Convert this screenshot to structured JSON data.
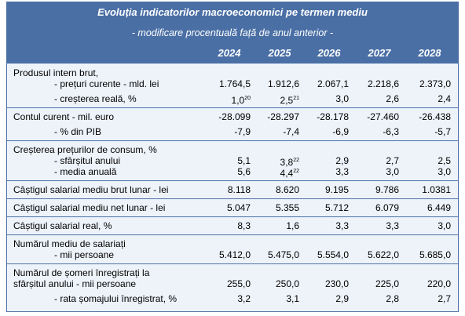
{
  "header": {
    "title": "Evoluția indicatorilor macroeconomici pe termen mediu",
    "subtitle": "- modificare procentuală față de anul anterior -",
    "years": [
      "2024",
      "2025",
      "2026",
      "2027",
      "2028"
    ]
  },
  "table": {
    "groups": [
      {
        "rows": [
          {
            "label": [
              "Produsul intern brut,",
              "- prețuri curente - mld. lei"
            ],
            "values": [
              "1.764,5",
              "1.912,6",
              "2.067,1",
              "2.218,6",
              "2.373,0"
            ]
          },
          {
            "label": [
              "- creșterea reală, %"
            ],
            "values": [
              {
                "text": "1,0",
                "note": "20"
              },
              {
                "text": "2,5",
                "note": "21"
              },
              "3,0",
              "2,6",
              "2,4"
            ]
          }
        ]
      },
      {
        "rows": [
          {
            "label": [
              "Contul curent - mil. euro"
            ],
            "values": [
              "-28.099",
              "-28.297",
              "-28.178",
              "-27.460",
              "-26.438"
            ]
          },
          {
            "label": [
              "- % din PIB"
            ],
            "values": [
              "-7,9",
              "-7,4",
              "-6,9",
              "-6,3",
              "-5,7"
            ]
          }
        ]
      },
      {
        "rows": [
          {
            "label": [
              "Creșterea prețurilor de consum, %",
              "- sfârșitul anului"
            ],
            "values": [
              "5,1",
              {
                "text": "3,8",
                "note": "22"
              },
              "2,9",
              "2,7",
              "2,5"
            ]
          },
          {
            "label": [
              "- media anuală"
            ],
            "values": [
              "5,6",
              {
                "text": "4,4",
                "note": "22"
              },
              "3,3",
              "3,0",
              "3,0"
            ],
            "tight": true
          }
        ]
      },
      {
        "rows": [
          {
            "label": [
              "Câștigul salarial mediu brut lunar - lei"
            ],
            "values": [
              "8.118",
              "8.620",
              "9.195",
              "9.786",
              "1.0381"
            ]
          }
        ]
      },
      {
        "rows": [
          {
            "label": [
              "Câștigul salarial mediu net lunar - lei"
            ],
            "values": [
              "5.047",
              "5.355",
              "5.712",
              "6.079",
              "6.449"
            ]
          }
        ]
      },
      {
        "rows": [
          {
            "label": [
              "Câștigul salarial real, %"
            ],
            "values": [
              "8,3",
              "1,6",
              "3,3",
              "3,3",
              "3,0"
            ]
          }
        ]
      },
      {
        "rows": [
          {
            "label": [
              "Numărul mediu de salariați",
              "- mii persoane"
            ],
            "values": [
              "5.412,0",
              "5.475,0",
              "5.554,0",
              "5.622,0",
              "5.685,0"
            ]
          }
        ]
      },
      {
        "rows": [
          {
            "label": [
              "Numărul de șomeri înregistrați la",
              "sfârșitul anului - mii persoane"
            ],
            "values": [
              "255,0",
              "250,0",
              "230,0",
              "225,0",
              "220,0"
            ]
          },
          {
            "label": [
              "- rata șomajului înregistrat, %"
            ],
            "values": [
              "3,2",
              "3,1",
              "2,9",
              "2,8",
              "2,7"
            ]
          }
        ]
      }
    ]
  }
}
